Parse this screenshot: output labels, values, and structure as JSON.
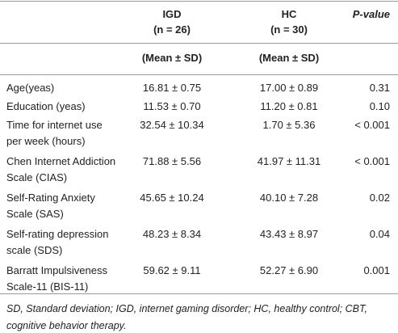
{
  "table": {
    "header": {
      "col1": [
        "IGD",
        "(n = 26)"
      ],
      "col2": [
        "HC",
        "(n = 30)"
      ],
      "col3": "P-value"
    },
    "subheader": {
      "col1": "(Mean ± SD)",
      "col2": "(Mean ± SD)"
    },
    "rows": [
      {
        "label": [
          "Age(yeas)"
        ],
        "igd": "16.81 ± 0.75",
        "hc": "17.00 ± 0.89",
        "p": "0.31"
      },
      {
        "label": [
          "Education (yeas)"
        ],
        "igd": "11.53 ± 0.70",
        "hc": "11.20 ± 0.81",
        "p": "0.10"
      },
      {
        "label": [
          "Time for internet use",
          "per week (hours)"
        ],
        "igd": "32.54 ± 10.34",
        "hc": "1.70 ± 5.36",
        "p": "< 0.001"
      },
      {
        "label": [
          "Chen Internet Addiction",
          "Scale (CIAS)"
        ],
        "igd": "71.88 ± 5.56",
        "hc": "41.97 ± 11.31",
        "p": "< 0.001"
      },
      {
        "label": [
          "Self-Rating Anxiety",
          "Scale (SAS)"
        ],
        "igd": "45.65 ± 10.24",
        "hc": "40.10 ± 7.28",
        "p": "0.02"
      },
      {
        "label": [
          "Self-rating depression",
          "scale (SDS)"
        ],
        "igd": "48.23 ± 8.34",
        "hc": "43.43 ± 8.97",
        "p": "0.04"
      },
      {
        "label": [
          "Barratt Impulsiveness",
          "Scale-11 (BIS-11)"
        ],
        "igd": "59.62 ± 9.11",
        "hc": "52.27 ± 6.90",
        "p": "0.001"
      }
    ]
  },
  "footnote": "SD, Standard deviation; IGD, internet gaming disorder; HC, healthy control; CBT, cognitive behavior therapy."
}
